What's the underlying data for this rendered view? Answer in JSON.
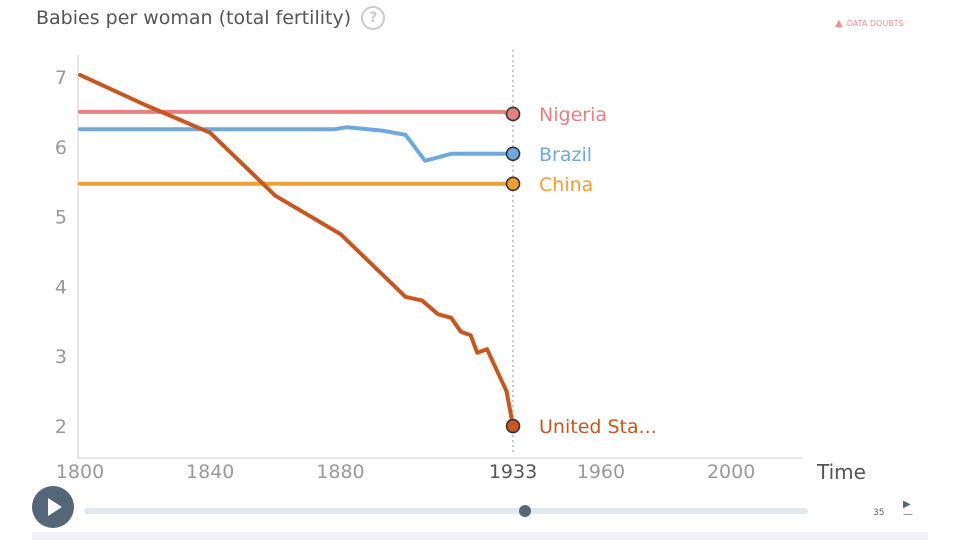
{
  "header": {
    "title": "Babies per woman (total fertility)",
    "help_glyph": "?",
    "data_doubts": "DATA DOUBTS"
  },
  "player": {
    "speed": "35",
    "time_label": "Time"
  },
  "chart_data": {
    "type": "line",
    "title": "Babies per woman (total fertility)",
    "xlabel": "Time",
    "ylabel": "Babies per woman (total fertility)",
    "xlim": [
      1800,
      2015
    ],
    "ylim": [
      1.8,
      7.1
    ],
    "x_ticks": [
      1800,
      1840,
      1880,
      1933,
      1960,
      2000
    ],
    "y_ticks": [
      2,
      3,
      4,
      5,
      6,
      7
    ],
    "current_year": 1933,
    "series": [
      {
        "name": "Nigeria",
        "color": "#e98080",
        "points": [
          [
            1800,
            6.5
          ],
          [
            1930,
            6.5
          ],
          [
            1933,
            6.47
          ]
        ]
      },
      {
        "name": "Brazil",
        "color": "#6ea8dc",
        "points": [
          [
            1800,
            6.25
          ],
          [
            1878,
            6.25
          ],
          [
            1882,
            6.28
          ],
          [
            1893,
            6.23
          ],
          [
            1900,
            6.17
          ],
          [
            1906,
            5.8
          ],
          [
            1914,
            5.9
          ],
          [
            1933,
            5.9
          ]
        ]
      },
      {
        "name": "China",
        "color": "#f0a030",
        "points": [
          [
            1800,
            5.47
          ],
          [
            1933,
            5.47
          ]
        ]
      },
      {
        "name": "United Sta...",
        "color": "#c8571f",
        "points": [
          [
            1800,
            7.03
          ],
          [
            1820,
            6.6
          ],
          [
            1840,
            6.2
          ],
          [
            1860,
            5.3
          ],
          [
            1880,
            4.75
          ],
          [
            1900,
            3.85
          ],
          [
            1905,
            3.8
          ],
          [
            1910,
            3.6
          ],
          [
            1914,
            3.55
          ],
          [
            1917,
            3.35
          ],
          [
            1920,
            3.3
          ],
          [
            1922,
            3.05
          ],
          [
            1925,
            3.1
          ],
          [
            1929,
            2.7
          ],
          [
            1931,
            2.5
          ],
          [
            1933,
            2.0
          ]
        ]
      }
    ]
  }
}
